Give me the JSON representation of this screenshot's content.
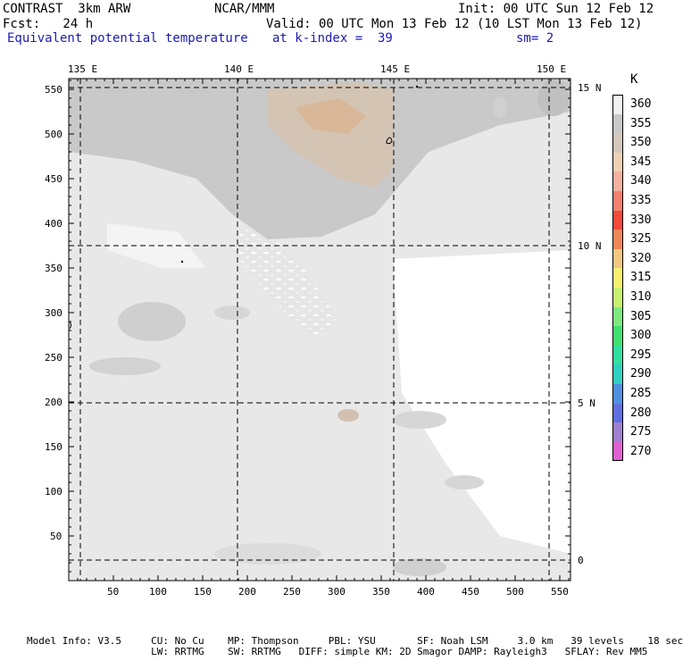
{
  "header": {
    "line1_left": "CONTRAST  3km ARW",
    "line1_mid": "NCAR/MMM",
    "line1_right": "Init: 00 UTC Sun 12 Feb 12",
    "line2_left": "Fcst:   24 h",
    "line2_right": "Valid: 00 UTC Mon 13 Feb 12 (10 LST Mon 13 Feb 12)",
    "line3_left": "Equivalent potential temperature",
    "line3_mid": "at k-index =  39",
    "line3_right": "sm= 2"
  },
  "map": {
    "top_lon_labels": [
      "135 E",
      "140 E",
      "145 E",
      "150 E"
    ],
    "right_lat_labels": [
      "15 N",
      "10 N",
      "5 N",
      "0"
    ],
    "y_tick_labels": [
      "550",
      "500",
      "450",
      "400",
      "350",
      "300",
      "250",
      "200",
      "150",
      "100",
      "50"
    ],
    "x_tick_labels": [
      "50",
      "100",
      "150",
      "200",
      "250",
      "300",
      "350",
      "400",
      "450",
      "500",
      "550"
    ],
    "colors": {
      "background_light": "#e8e8e8",
      "band_350": "#c8c8c8",
      "band_345": "#d8b898",
      "white": "#ffffff"
    }
  },
  "legend": {
    "unit": "K",
    "items": [
      {
        "label": "360",
        "color": "#f2f2f2"
      },
      {
        "label": "355",
        "color": "#c8c8c8"
      },
      {
        "label": "350",
        "color": "#d4c8bc"
      },
      {
        "label": "345",
        "color": "#f0d0b4"
      },
      {
        "label": "340",
        "color": "#f4b0a0"
      },
      {
        "label": "335",
        "color": "#f48070"
      },
      {
        "label": "330",
        "color": "#f44a3c"
      },
      {
        "label": "325",
        "color": "#f08858"
      },
      {
        "label": "320",
        "color": "#f4c880"
      },
      {
        "label": "315",
        "color": "#f8f070"
      },
      {
        "label": "310",
        "color": "#c8f070"
      },
      {
        "label": "305",
        "color": "#80e880"
      },
      {
        "label": "300",
        "color": "#40e070"
      },
      {
        "label": "295",
        "color": "#30e0a0"
      },
      {
        "label": "290",
        "color": "#30d0c0"
      },
      {
        "label": "285",
        "color": "#5090e0"
      },
      {
        "label": "280",
        "color": "#6070e0"
      },
      {
        "label": "275",
        "color": "#a080d0"
      },
      {
        "label": "270",
        "color": "#e060d0"
      }
    ]
  },
  "footer": {
    "line1": "Model Info: V3.5     CU: No Cu    MP: Thompson     PBL: YSU       SF: Noah LSM     3.0 km   39 levels    18 sec",
    "line2": "                     LW: RRTMG    SW: RRTMG   DIFF: simple KM: 2D Smagor DAMP: Rayleigh3   SFLAY: Rev MM5"
  }
}
